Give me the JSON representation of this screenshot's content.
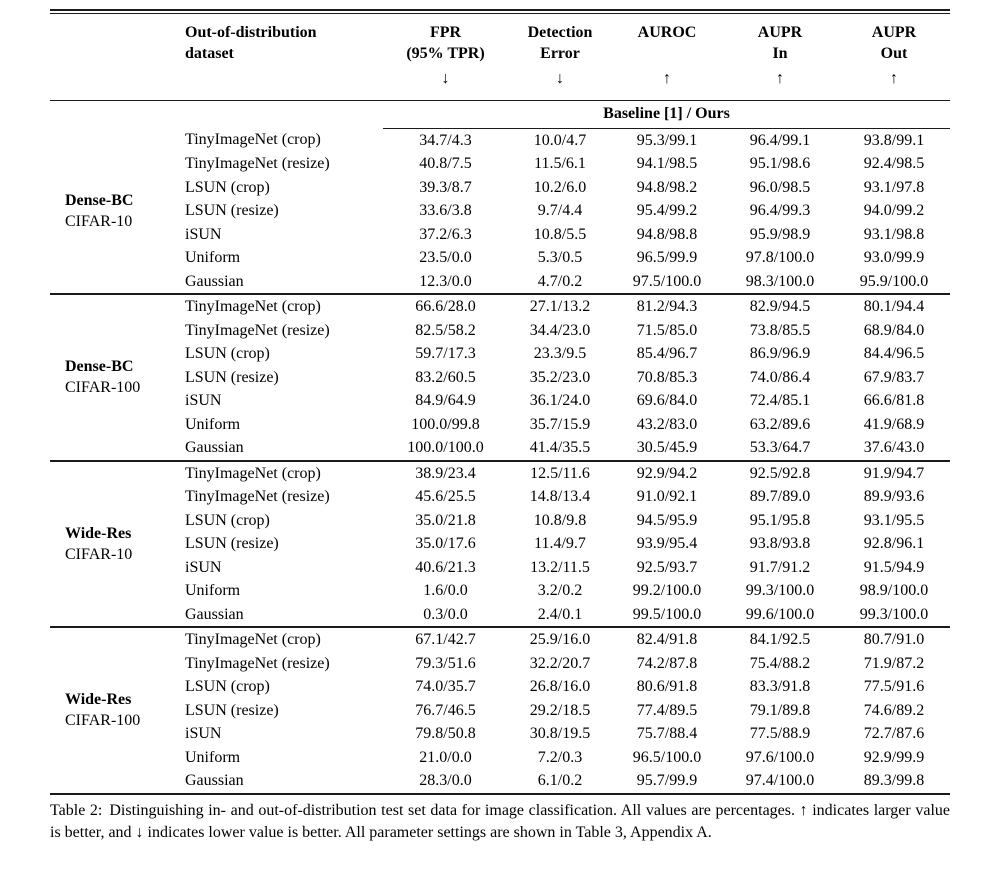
{
  "colors": {
    "background": "#ffffff",
    "text": "#000000",
    "rule": "#1a1a1a"
  },
  "table": {
    "baseline_label": "Baseline [1] / Ours",
    "columns": [
      {
        "label_lines": [
          "Out-of-distribution",
          "dataset"
        ],
        "arrow": ""
      },
      {
        "label_lines": [
          "FPR",
          "(95% TPR)"
        ],
        "arrow": "↓"
      },
      {
        "label_lines": [
          "Detection",
          "Error"
        ],
        "arrow": "↓"
      },
      {
        "label_lines": [
          "AUROC"
        ],
        "arrow": "↑"
      },
      {
        "label_lines": [
          "AUPR",
          "In"
        ],
        "arrow": "↑"
      },
      {
        "label_lines": [
          "AUPR",
          "Out"
        ],
        "arrow": "↑"
      }
    ],
    "groups": [
      {
        "model": "Dense-BC",
        "dataset": "CIFAR-10",
        "rows": [
          {
            "ood": "TinyImageNet (crop)",
            "values": [
              "34.7/4.3",
              "10.0/4.7",
              "95.3/99.1",
              "96.4/99.1",
              "93.8/99.1"
            ]
          },
          {
            "ood": "TinyImageNet (resize)",
            "values": [
              "40.8/7.5",
              "11.5/6.1",
              "94.1/98.5",
              "95.1/98.6",
              "92.4/98.5"
            ]
          },
          {
            "ood": "LSUN (crop)",
            "values": [
              "39.3/8.7",
              "10.2/6.0",
              "94.8/98.2",
              "96.0/98.5",
              "93.1/97.8"
            ]
          },
          {
            "ood": "LSUN (resize)",
            "values": [
              "33.6/3.8",
              "9.7/4.4",
              "95.4/99.2",
              "96.4/99.3",
              "94.0/99.2"
            ]
          },
          {
            "ood": "iSUN",
            "values": [
              "37.2/6.3",
              "10.8/5.5",
              "94.8/98.8",
              "95.9/98.9",
              "93.1/98.8"
            ]
          },
          {
            "ood": "Uniform",
            "values": [
              "23.5/0.0",
              "5.3/0.5",
              "96.5/99.9",
              "97.8/100.0",
              "93.0/99.9"
            ]
          },
          {
            "ood": "Gaussian",
            "values": [
              "12.3/0.0",
              "4.7/0.2",
              "97.5/100.0",
              "98.3/100.0",
              "95.9/100.0"
            ]
          }
        ]
      },
      {
        "model": "Dense-BC",
        "dataset": "CIFAR-100",
        "rows": [
          {
            "ood": "TinyImageNet (crop)",
            "values": [
              "66.6/28.0",
              "27.1/13.2",
              "81.2/94.3",
              "82.9/94.5",
              "80.1/94.4"
            ]
          },
          {
            "ood": "TinyImageNet (resize)",
            "values": [
              "82.5/58.2",
              "34.4/23.0",
              "71.5/85.0",
              "73.8/85.5",
              "68.9/84.0"
            ]
          },
          {
            "ood": "LSUN (crop)",
            "values": [
              "59.7/17.3",
              "23.3/9.5",
              "85.4/96.7",
              "86.9/96.9",
              "84.4/96.5"
            ]
          },
          {
            "ood": "LSUN (resize)",
            "values": [
              "83.2/60.5",
              "35.2/23.0",
              "70.8/85.3",
              "74.0/86.4",
              "67.9/83.7"
            ]
          },
          {
            "ood": "iSUN",
            "values": [
              "84.9/64.9",
              "36.1/24.0",
              "69.6/84.0",
              "72.4/85.1",
              "66.6/81.8"
            ]
          },
          {
            "ood": "Uniform",
            "values": [
              "100.0/99.8",
              "35.7/15.9",
              "43.2/83.0",
              "63.2/89.6",
              "41.9/68.9"
            ]
          },
          {
            "ood": "Gaussian",
            "values": [
              "100.0/100.0",
              "41.4/35.5",
              "30.5/45.9",
              "53.3/64.7",
              "37.6/43.0"
            ]
          }
        ]
      },
      {
        "model": "Wide-Res",
        "dataset": "CIFAR-10",
        "rows": [
          {
            "ood": "TinyImageNet (crop)",
            "values": [
              "38.9/23.4",
              "12.5/11.6",
              "92.9/94.2",
              "92.5/92.8",
              "91.9/94.7"
            ]
          },
          {
            "ood": "TinyImageNet (resize)",
            "values": [
              "45.6/25.5",
              "14.8/13.4",
              "91.0/92.1",
              "89.7/89.0",
              "89.9/93.6"
            ]
          },
          {
            "ood": "LSUN (crop)",
            "values": [
              "35.0/21.8",
              "10.8/9.8",
              "94.5/95.9",
              "95.1/95.8",
              "93.1/95.5"
            ]
          },
          {
            "ood": "LSUN (resize)",
            "values": [
              "35.0/17.6",
              "11.4/9.7",
              "93.9/95.4",
              "93.8/93.8",
              "92.8/96.1"
            ]
          },
          {
            "ood": "iSUN",
            "values": [
              "40.6/21.3",
              "13.2/11.5",
              "92.5/93.7",
              "91.7/91.2",
              "91.5/94.9"
            ]
          },
          {
            "ood": "Uniform",
            "values": [
              "1.6/0.0",
              "3.2/0.2",
              "99.2/100.0",
              "99.3/100.0",
              "98.9/100.0"
            ]
          },
          {
            "ood": "Gaussian",
            "values": [
              "0.3/0.0",
              "2.4/0.1",
              "99.5/100.0",
              "99.6/100.0",
              "99.3/100.0"
            ]
          }
        ]
      },
      {
        "model": "Wide-Res",
        "dataset": "CIFAR-100",
        "rows": [
          {
            "ood": "TinyImageNet (crop)",
            "values": [
              "67.1/42.7",
              "25.9/16.0",
              "82.4/91.8",
              "84.1/92.5",
              "80.7/91.0"
            ]
          },
          {
            "ood": "TinyImageNet (resize)",
            "values": [
              "79.3/51.6",
              "32.2/20.7",
              "74.2/87.8",
              "75.4/88.2",
              "71.9/87.2"
            ]
          },
          {
            "ood": "LSUN (crop)",
            "values": [
              "74.0/35.7",
              "26.8/16.0",
              "80.6/91.8",
              "83.3/91.8",
              "77.5/91.6"
            ]
          },
          {
            "ood": "LSUN (resize)",
            "values": [
              "76.7/46.5",
              "29.2/18.5",
              "77.4/89.5",
              "79.1/89.8",
              "74.6/89.2"
            ]
          },
          {
            "ood": "iSUN",
            "values": [
              "79.8/50.8",
              "30.8/19.5",
              "75.7/88.4",
              "77.5/88.9",
              "72.7/87.6"
            ]
          },
          {
            "ood": "Uniform",
            "values": [
              "21.0/0.0",
              "7.2/0.3",
              "96.5/100.0",
              "97.6/100.0",
              "92.9/99.9"
            ]
          },
          {
            "ood": "Gaussian",
            "values": [
              "28.3/0.0",
              "6.1/0.2",
              "95.7/99.9",
              "97.4/100.0",
              "89.3/99.8"
            ]
          }
        ]
      }
    ]
  },
  "caption": {
    "label": "Table 2:",
    "text": "Distinguishing in- and out-of-distribution test set data for image classification.  All values are percentages. ↑ indicates larger value is better, and ↓ indicates lower value is better. All parameter settings are shown in Table 3, Appendix A."
  }
}
